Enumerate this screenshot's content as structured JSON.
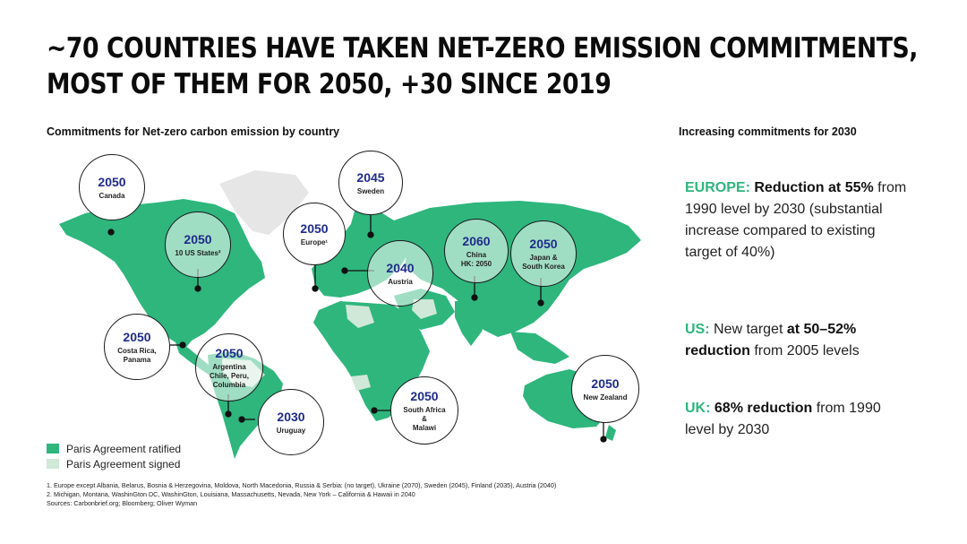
{
  "title": {
    "line1": "~70 COUNTRIES HAVE TAKEN NET-ZERO EMISSION COMMITMENTS,",
    "line2": "MOST OF THEM FOR 2050, +30 SINCE 2019"
  },
  "map_subtitle": "Commitments for Net-zero carbon emission by country",
  "right_subtitle": "Increasing commitments for 2030",
  "colors": {
    "ratified": "#2eb67d",
    "signed": "#cfe8d7",
    "no_data": "#e6e6e6",
    "year": "#1f2b8a"
  },
  "callouts": [
    {
      "year": "2050",
      "name": "Canada"
    },
    {
      "year": "2050",
      "name": "10 US States²"
    },
    {
      "year": "2050",
      "name": "Europe¹"
    },
    {
      "year": "2045",
      "name": "Sweden"
    },
    {
      "year": "2040",
      "name": "Austria"
    },
    {
      "year": "2060",
      "name": "China\nHK: 2050"
    },
    {
      "year": "2050",
      "name": "Japan &\nSouth Korea"
    },
    {
      "year": "2050",
      "name": "Costa Rica,\nPanama"
    },
    {
      "year": "2050",
      "name": "Argentina\nChile, Peru,\nColumbia"
    },
    {
      "year": "2030",
      "name": "Uruguay"
    },
    {
      "year": "2050",
      "name": "South Africa\n&\nMalawi"
    },
    {
      "year": "2050",
      "name": "New Zealand"
    }
  ],
  "legend": {
    "ratified": "Paris Agreement ratified",
    "signed": "Paris Agreement signed"
  },
  "footnotes": [
    "1. Europe except Albania, Belarus, Bosnia & Herzegovina, Moldova, North Macedonia, Russia & Serbia: (no target), Ukraine (2070), Sweden (2045), Finland (2035), Austria (2040)",
    "2. Michigan, Montana, WashinGton DC, WashinGton, Louisiana, Massachusetts, Nevada, New York – California & Hawaii in 2040",
    "Sources: Carbonbrief.org; Bloomberg; Oliver Wyman"
  ],
  "commitments": [
    {
      "region": "EUROPE:",
      "bold": "Reduction at 55%",
      "text": "from 1990 level by 2030 (substantial increase compared to existing target of 40%)"
    },
    {
      "region": "US:",
      "pre": "New target ",
      "bold": "at 50–52% reduction",
      "text": "from 2005 levels"
    },
    {
      "region": "UK:",
      "bold": "68% reduction",
      "text": "from 1990 level by 2030"
    }
  ]
}
